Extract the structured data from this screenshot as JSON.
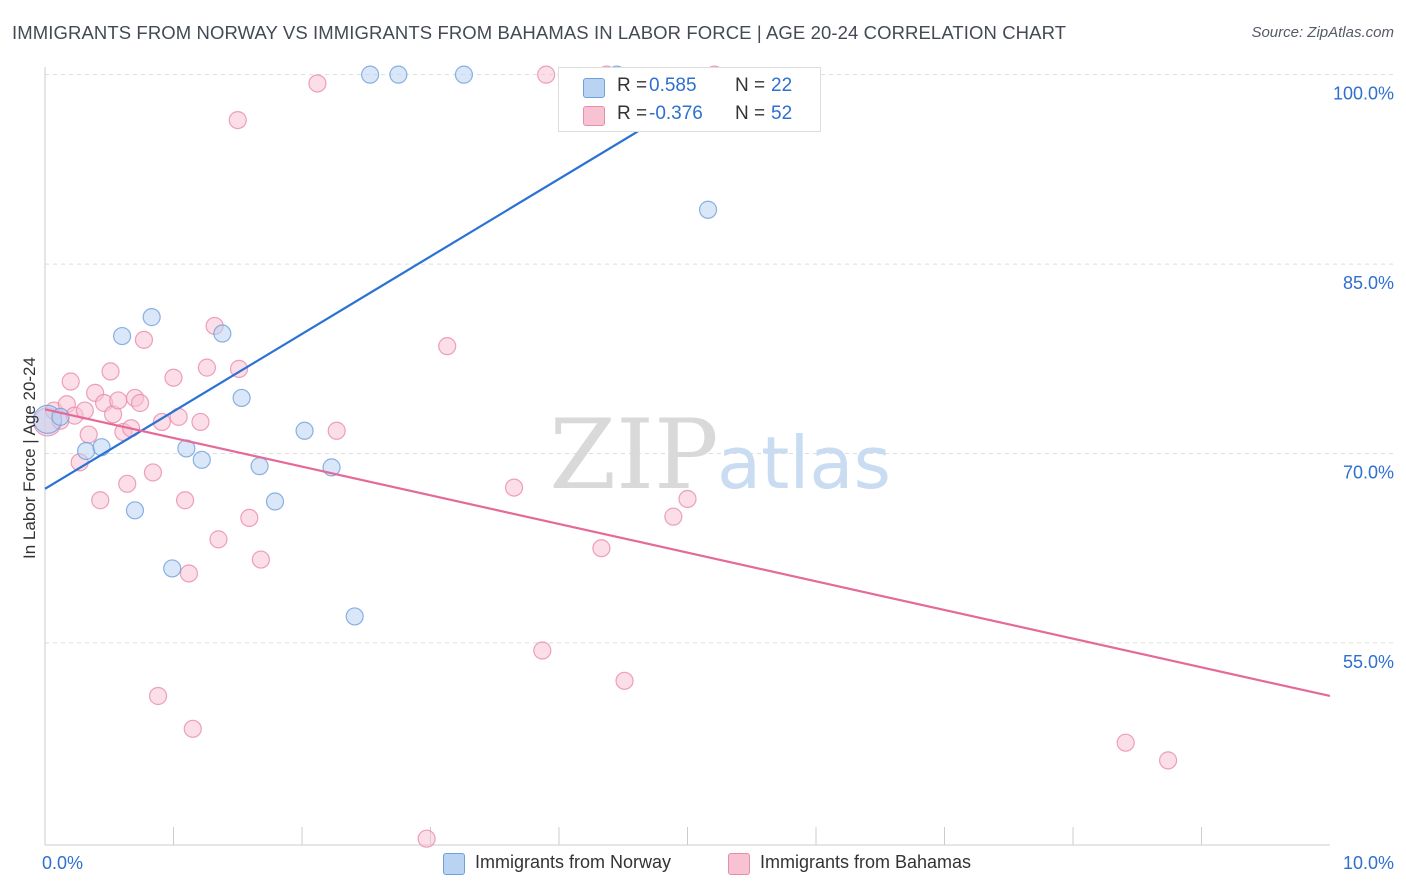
{
  "title": "IMMIGRANTS FROM NORWAY VS IMMIGRANTS FROM BAHAMAS IN LABOR FORCE | AGE 20-24 CORRELATION CHART",
  "source": "Source: ZipAtlas.com",
  "watermark": {
    "zip": "ZIP",
    "atlas": "atlas"
  },
  "colors": {
    "norway_fill": "#b9d3f3",
    "norway_stroke": "#6f9fdc",
    "norway_line": "#2a72d3",
    "bahamas_fill": "#f7c3d3",
    "bahamas_stroke": "#e98bab",
    "bahamas_line": "#e56a99",
    "axis_text": "#2e6fd0",
    "grid": "#dddddd"
  },
  "legend": {
    "rows": [
      {
        "r_label": "R =",
        "r_value": "0.585",
        "n_label": "N =",
        "n_value": "22"
      },
      {
        "r_label": "R =",
        "r_value": "-0.376",
        "n_label": "N =",
        "n_value": "52"
      }
    ]
  },
  "bottom_legend": [
    "Immigrants from Norway",
    "Immigrants from Bahamas"
  ],
  "chart_data": {
    "type": "scatter",
    "title": "IMMIGRANTS FROM NORWAY VS IMMIGRANTS FROM BAHAMAS IN LABOR FORCE | AGE 20-24 CORRELATION CHART",
    "xlabel": "",
    "ylabel": "In Labor Force | Age 20-24",
    "xlim": [
      0,
      10
    ],
    "ylim": [
      40.5,
      102.5
    ],
    "x_tick_labels": [
      {
        "value": 0,
        "label": "0.0%"
      },
      {
        "value": 10,
        "label": "10.0%"
      }
    ],
    "y_tick_labels": [
      {
        "value": 100,
        "label": "100.0%"
      },
      {
        "value": 85,
        "label": "85.0%"
      },
      {
        "value": 70,
        "label": "70.0%"
      },
      {
        "value": 55,
        "label": "55.0%"
      }
    ],
    "y_gridlines": [
      101.5,
      86.5,
      71.5,
      56.5
    ],
    "x_minor_ticks": [
      1,
      2,
      3,
      4,
      5,
      6,
      7,
      8,
      9
    ],
    "series": [
      {
        "name": "Immigrants from Norway",
        "r": 0.585,
        "n": 22,
        "trendline": {
          "x": [
            0.0,
            5.2
          ],
          "y": [
            68.7,
            100.6
          ]
        },
        "points": [
          {
            "x": 0.02,
            "y": 74.2,
            "big": true
          },
          {
            "x": 0.12,
            "y": 74.4
          },
          {
            "x": 0.32,
            "y": 71.7
          },
          {
            "x": 0.44,
            "y": 72.0
          },
          {
            "x": 0.6,
            "y": 80.8
          },
          {
            "x": 0.7,
            "y": 67.0
          },
          {
            "x": 0.83,
            "y": 82.3
          },
          {
            "x": 0.99,
            "y": 62.4
          },
          {
            "x": 1.1,
            "y": 71.9
          },
          {
            "x": 1.22,
            "y": 71.0
          },
          {
            "x": 1.38,
            "y": 81.0
          },
          {
            "x": 1.53,
            "y": 75.9
          },
          {
            "x": 1.67,
            "y": 70.5
          },
          {
            "x": 1.79,
            "y": 67.7
          },
          {
            "x": 2.02,
            "y": 73.3
          },
          {
            "x": 2.23,
            "y": 70.4
          },
          {
            "x": 2.41,
            "y": 58.6
          },
          {
            "x": 2.53,
            "y": 101.5
          },
          {
            "x": 2.75,
            "y": 101.5
          },
          {
            "x": 3.26,
            "y": 101.5
          },
          {
            "x": 4.45,
            "y": 101.5
          },
          {
            "x": 5.16,
            "y": 90.8
          }
        ]
      },
      {
        "name": "Immigrants from Bahamas",
        "r": -0.376,
        "n": 52,
        "trendline": {
          "x": [
            0.0,
            10.0
          ],
          "y": [
            75.0,
            52.3
          ]
        },
        "points": [
          {
            "x": 0.02,
            "y": 74.0,
            "big": true
          },
          {
            "x": 0.07,
            "y": 74.9
          },
          {
            "x": 0.12,
            "y": 74.1
          },
          {
            "x": 0.17,
            "y": 75.4
          },
          {
            "x": 0.2,
            "y": 77.2
          },
          {
            "x": 0.23,
            "y": 74.5
          },
          {
            "x": 0.27,
            "y": 70.8
          },
          {
            "x": 0.31,
            "y": 74.9
          },
          {
            "x": 0.34,
            "y": 73.0
          },
          {
            "x": 0.39,
            "y": 76.3
          },
          {
            "x": 0.43,
            "y": 67.8
          },
          {
            "x": 0.46,
            "y": 75.5
          },
          {
            "x": 0.51,
            "y": 78.0
          },
          {
            "x": 0.53,
            "y": 74.6
          },
          {
            "x": 0.57,
            "y": 75.7
          },
          {
            "x": 0.61,
            "y": 73.2
          },
          {
            "x": 0.64,
            "y": 69.1
          },
          {
            "x": 0.67,
            "y": 73.5
          },
          {
            "x": 0.7,
            "y": 75.9
          },
          {
            "x": 0.74,
            "y": 75.5
          },
          {
            "x": 0.77,
            "y": 80.5
          },
          {
            "x": 0.84,
            "y": 70.0
          },
          {
            "x": 0.88,
            "y": 52.3
          },
          {
            "x": 0.91,
            "y": 74.0
          },
          {
            "x": 1.0,
            "y": 77.5
          },
          {
            "x": 1.04,
            "y": 74.4
          },
          {
            "x": 1.09,
            "y": 67.8
          },
          {
            "x": 1.12,
            "y": 62.0
          },
          {
            "x": 1.15,
            "y": 49.7
          },
          {
            "x": 1.21,
            "y": 74.0
          },
          {
            "x": 1.26,
            "y": 78.3
          },
          {
            "x": 1.32,
            "y": 81.6
          },
          {
            "x": 1.35,
            "y": 64.7
          },
          {
            "x": 1.51,
            "y": 78.2
          },
          {
            "x": 1.59,
            "y": 66.4
          },
          {
            "x": 1.68,
            "y": 63.1
          },
          {
            "x": 1.5,
            "y": 97.9
          },
          {
            "x": 2.12,
            "y": 100.8
          },
          {
            "x": 2.27,
            "y": 73.3
          },
          {
            "x": 2.97,
            "y": 41.0
          },
          {
            "x": 3.13,
            "y": 80.0
          },
          {
            "x": 3.65,
            "y": 68.8
          },
          {
            "x": 3.87,
            "y": 55.9
          },
          {
            "x": 4.33,
            "y": 64.0
          },
          {
            "x": 4.37,
            "y": 101.5
          },
          {
            "x": 4.89,
            "y": 66.5
          },
          {
            "x": 5.0,
            "y": 67.9
          },
          {
            "x": 5.21,
            "y": 101.5
          },
          {
            "x": 4.51,
            "y": 53.5
          },
          {
            "x": 8.41,
            "y": 48.6
          },
          {
            "x": 8.74,
            "y": 47.2
          },
          {
            "x": 3.9,
            "y": 101.5
          }
        ]
      }
    ]
  }
}
